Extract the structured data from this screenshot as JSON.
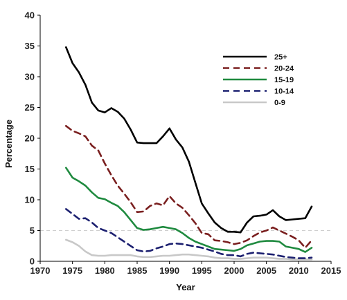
{
  "chart_data": {
    "type": "line",
    "title": "",
    "xlabel": "Year",
    "ylabel": "Percentage",
    "xlim": [
      1970,
      2015
    ],
    "ylim": [
      0,
      40
    ],
    "xticks": [
      "1970",
      "1975",
      "1980",
      "1985",
      "1990",
      "1995",
      "2000",
      "2005",
      "2010",
      "2015"
    ],
    "yticks": [
      "0",
      "5",
      "10",
      "15",
      "20",
      "25",
      "30",
      "35",
      "40"
    ],
    "reference_line": {
      "y": 5,
      "color": "#cfcfcf",
      "style": "dashed"
    },
    "grid": false,
    "legend_position": "top-right",
    "series": [
      {
        "name": "25+",
        "color": "#000000",
        "dash": "solid",
        "x": [
          1974,
          1975,
          1976,
          1977,
          1978,
          1979,
          1980,
          1981,
          1982,
          1983,
          1984,
          1985,
          1986,
          1987,
          1988,
          1989,
          1990,
          1991,
          1992,
          1993,
          1994,
          1995,
          1996,
          1997,
          1998,
          1999,
          2000,
          2001,
          2002,
          2003,
          2004,
          2005,
          2006,
          2007,
          2008,
          2009,
          2010,
          2011,
          2012
        ],
        "y": [
          34.8,
          32.2,
          30.7,
          28.7,
          25.8,
          24.5,
          24.2,
          24.9,
          24.3,
          23.2,
          21.4,
          19.3,
          19.2,
          19.2,
          19.2,
          20.3,
          21.6,
          19.8,
          18.5,
          16.2,
          12.8,
          9.4,
          7.8,
          6.3,
          5.4,
          4.8,
          4.8,
          4.7,
          6.3,
          7.3,
          7.4,
          7.6,
          8.3,
          7.3,
          6.7,
          6.8,
          6.9,
          7.0,
          8.9
        ]
      },
      {
        "name": "20-24",
        "color": "#7a1f1f",
        "dash": "dashed",
        "x": [
          1974,
          1975,
          1976,
          1977,
          1978,
          1979,
          1980,
          1981,
          1982,
          1983,
          1984,
          1985,
          1986,
          1987,
          1988,
          1989,
          1990,
          1991,
          1992,
          1993,
          1994,
          1995,
          1996,
          1997,
          1998,
          1999,
          2000,
          2001,
          2002,
          2003,
          2004,
          2005,
          2006,
          2007,
          2008,
          2009,
          2010,
          2011,
          2012
        ],
        "y": [
          22.0,
          21.2,
          20.8,
          20.3,
          18.8,
          18.0,
          15.9,
          14.0,
          12.3,
          11.0,
          9.6,
          8.0,
          8.1,
          9.0,
          9.4,
          9.1,
          10.6,
          9.4,
          8.7,
          7.5,
          6.2,
          4.6,
          4.4,
          3.4,
          3.3,
          3.1,
          2.8,
          3.0,
          3.4,
          4.1,
          4.7,
          5.0,
          5.5,
          5.0,
          4.5,
          4.0,
          3.4,
          2.2,
          3.4
        ]
      },
      {
        "name": "15-19",
        "color": "#1f8a3f",
        "dash": "solid",
        "x": [
          1974,
          1975,
          1976,
          1977,
          1978,
          1979,
          1980,
          1981,
          1982,
          1983,
          1984,
          1985,
          1986,
          1987,
          1988,
          1989,
          1990,
          1991,
          1992,
          1993,
          1994,
          1995,
          1996,
          1997,
          1998,
          1999,
          2000,
          2001,
          2002,
          2003,
          2004,
          2005,
          2006,
          2007,
          2008,
          2009,
          2010,
          2011,
          2012
        ],
        "y": [
          15.2,
          13.6,
          13.0,
          12.3,
          11.2,
          10.3,
          10.1,
          9.5,
          9.0,
          8.0,
          6.7,
          5.4,
          5.1,
          5.2,
          5.4,
          5.6,
          5.4,
          5.2,
          4.6,
          3.8,
          3.2,
          2.8,
          2.4,
          2.0,
          1.9,
          1.8,
          1.7,
          2.0,
          2.6,
          2.9,
          3.2,
          3.3,
          3.3,
          3.2,
          2.4,
          2.2,
          2.0,
          1.5,
          2.2
        ]
      },
      {
        "name": "10-14",
        "color": "#1c2070",
        "dash": "dashed",
        "x": [
          1974,
          1975,
          1976,
          1977,
          1978,
          1979,
          1980,
          1981,
          1982,
          1983,
          1984,
          1985,
          1986,
          1987,
          1988,
          1989,
          1990,
          1991,
          1992,
          1993,
          1994,
          1995,
          1996,
          1997,
          1998,
          1999,
          2000,
          2001,
          2002,
          2003,
          2004,
          2005,
          2006,
          2007,
          2008,
          2009,
          2010,
          2011,
          2012
        ],
        "y": [
          8.5,
          7.7,
          6.9,
          7.0,
          6.3,
          5.4,
          5.0,
          4.6,
          3.9,
          3.2,
          2.5,
          1.8,
          1.6,
          1.7,
          2.1,
          2.4,
          2.8,
          2.9,
          2.8,
          2.6,
          2.4,
          2.2,
          1.9,
          1.6,
          1.2,
          1.0,
          1.0,
          0.8,
          1.2,
          1.4,
          1.3,
          1.2,
          1.1,
          0.9,
          0.7,
          0.6,
          0.5,
          0.5,
          0.6
        ]
      },
      {
        "name": "0-9",
        "color": "#c8c8c8",
        "dash": "solid",
        "x": [
          1974,
          1975,
          1976,
          1977,
          1978,
          1979,
          1980,
          1981,
          1982,
          1983,
          1984,
          1985,
          1986,
          1987,
          1988,
          1989,
          1990,
          1991,
          1992,
          1993,
          1994,
          1995,
          1996,
          1997,
          1998,
          1999,
          2000,
          2001,
          2002,
          2003,
          2004,
          2005,
          2006,
          2007,
          2008,
          2009,
          2010,
          2011,
          2012
        ],
        "y": [
          3.5,
          3.1,
          2.5,
          1.6,
          1.0,
          0.9,
          0.9,
          1.0,
          1.0,
          1.0,
          1.0,
          0.8,
          0.7,
          0.7,
          0.8,
          0.9,
          0.9,
          1.0,
          1.1,
          1.1,
          1.0,
          0.9,
          0.8,
          0.6,
          0.5,
          0.5,
          0.4,
          0.4,
          0.5,
          0.6,
          0.6,
          0.6,
          0.5,
          0.4,
          0.4,
          0.3,
          0.3,
          0.3,
          0.3
        ]
      }
    ]
  }
}
